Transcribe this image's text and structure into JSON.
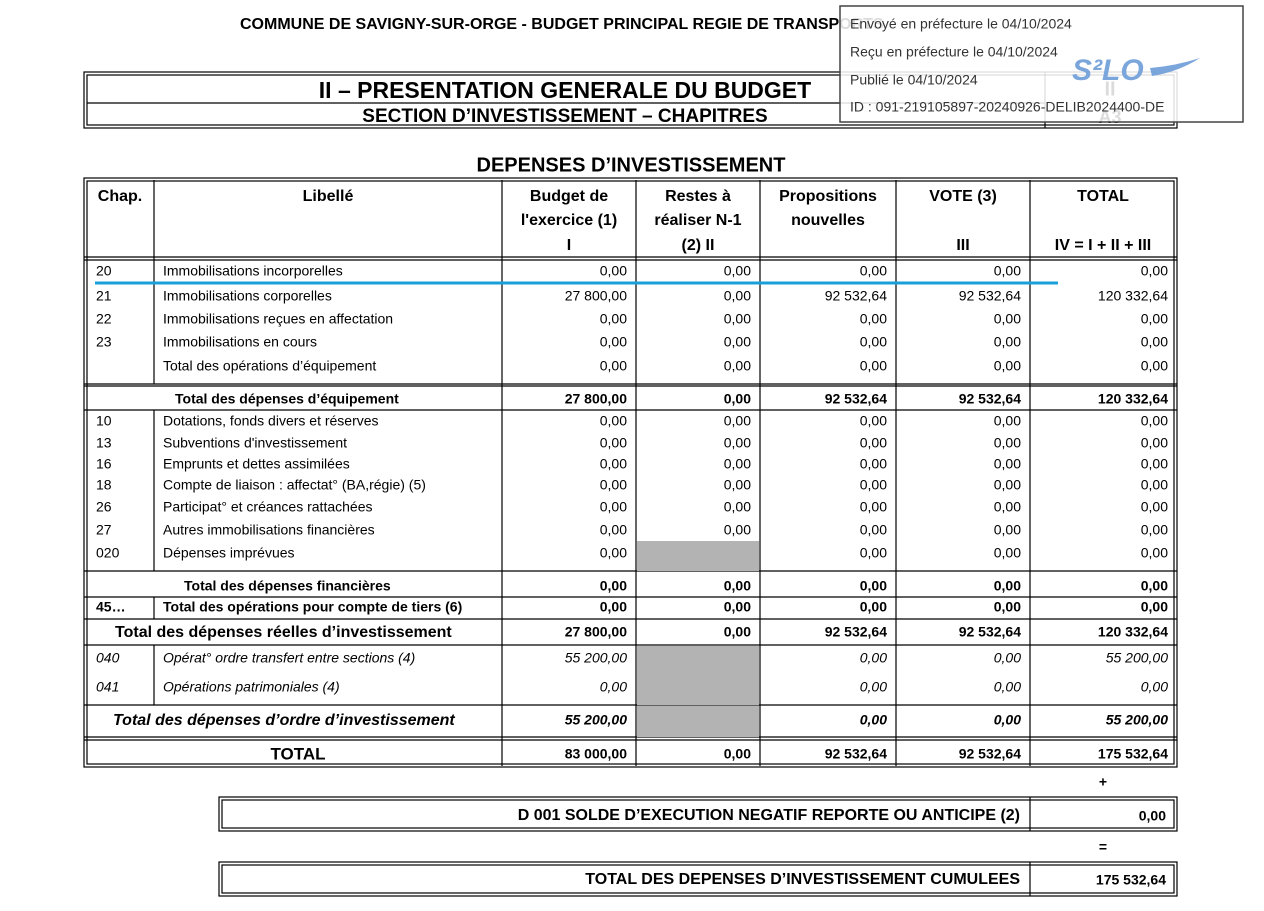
{
  "header": {
    "title": "COMMUNE DE SAVIGNY-SUR-ORGE - BUDGET PRINCIPAL REGIE DE TRANSPORTS"
  },
  "stamp": {
    "lines": [
      "Envoyé en préfecture le 04/10/2024",
      "Reçu en préfecture le 04/10/2024",
      "Publié le 04/10/2024",
      "ID : 091-219105897-20240926-DELIB2024400-DE"
    ],
    "logo": "S²LO"
  },
  "title_block": {
    "title": "II – PRESENTATION GENERALE DU BUDGET",
    "subtitle": "SECTION D’INVESTISSEMENT – CHAPITRES",
    "section": "II",
    "page": "A3"
  },
  "section_title": "DEPENSES D’INVESTISSEMENT",
  "table": {
    "headers": [
      [
        "Chap."
      ],
      [
        "Libellé"
      ],
      [
        "Budget de",
        "l'exercice (1)",
        "I"
      ],
      [
        "Restes à",
        "réaliser N-1",
        "(2) II"
      ],
      [
        "Propositions",
        "nouvelles"
      ],
      [
        "VOTE (3)",
        "III"
      ],
      [
        "TOTAL",
        "IV = I + II + III"
      ]
    ],
    "rows": [
      {
        "chap": "20",
        "label": "Immobilisations incorporelles",
        "values": [
          "0,00",
          "0,00",
          "0,00",
          "0,00",
          "0,00"
        ]
      },
      {
        "chap": "21",
        "label": "Immobilisations corporelles",
        "values": [
          "27 800,00",
          "0,00",
          "92 532,64",
          "92 532,64",
          "120 332,64"
        ]
      },
      {
        "chap": "22",
        "label": "Immobilisations reçues en affectation",
        "values": [
          "0,00",
          "0,00",
          "0,00",
          "0,00",
          "0,00"
        ]
      },
      {
        "chap": "23",
        "label": "Immobilisations en cours",
        "values": [
          "0,00",
          "0,00",
          "0,00",
          "0,00",
          "0,00"
        ]
      },
      {
        "label": "Total des opérations d’équipement",
        "values": [
          "0,00",
          "0,00",
          "0,00",
          "0,00",
          "0,00"
        ]
      },
      {
        "label": "Total des dépenses d’équipement",
        "values": [
          "27 800,00",
          "0,00",
          "92 532,64",
          "92 532,64",
          "120 332,64"
        ]
      },
      {
        "chap": "10",
        "label": "Dotations, fonds divers et réserves",
        "values": [
          "0,00",
          "0,00",
          "0,00",
          "0,00",
          "0,00"
        ]
      },
      {
        "chap": "13",
        "label": "Subventions d'investissement",
        "values": [
          "0,00",
          "0,00",
          "0,00",
          "0,00",
          "0,00"
        ]
      },
      {
        "chap": "16",
        "label": "Emprunts et dettes assimilées",
        "values": [
          "0,00",
          "0,00",
          "0,00",
          "0,00",
          "0,00"
        ]
      },
      {
        "chap": "18",
        "label": "Compte de liaison : affectat° (BA,régie) (5)",
        "values": [
          "0,00",
          "0,00",
          "0,00",
          "0,00",
          "0,00"
        ]
      },
      {
        "chap": "26",
        "label": "Participat° et créances rattachées",
        "values": [
          "0,00",
          "0,00",
          "0,00",
          "0,00",
          "0,00"
        ]
      },
      {
        "chap": "27",
        "label": "Autres immobilisations financières",
        "values": [
          "0,00",
          "0,00",
          "0,00",
          "0,00",
          "0,00"
        ]
      },
      {
        "chap": "020",
        "label": "Dépenses imprévues",
        "values": [
          "0,00",
          null,
          "0,00",
          "0,00",
          "0,00"
        ]
      },
      {
        "label": "Total des dépenses financières",
        "values": [
          "0,00",
          "0,00",
          "0,00",
          "0,00",
          "0,00"
        ]
      },
      {
        "chap": "45…",
        "label": "Total des opérations pour compte de tiers (6)",
        "values": [
          "0,00",
          "0,00",
          "0,00",
          "0,00",
          "0,00"
        ]
      },
      {
        "label": "Total des dépenses réelles d’investissement",
        "values": [
          "27 800,00",
          "0,00",
          "92 532,64",
          "92 532,64",
          "120 332,64"
        ]
      },
      {
        "chap": "040",
        "label": "Opérat° ordre transfert entre sections (4)",
        "values": [
          "55 200,00",
          null,
          "0,00",
          "0,00",
          "55 200,00"
        ]
      },
      {
        "chap": "041",
        "label": "Opérations patrimoniales (4)",
        "values": [
          "0,00",
          null,
          "0,00",
          "0,00",
          "0,00"
        ]
      },
      {
        "label": "Total des dépenses d’ordre d’investissement",
        "values": [
          "55 200,00",
          null,
          "0,00",
          "0,00",
          "55 200,00"
        ]
      },
      {
        "label": "TOTAL",
        "values": [
          "83 000,00",
          "0,00",
          "92 532,64",
          "92 532,64",
          "175 532,64"
        ]
      }
    ]
  },
  "summary": {
    "plus": "+",
    "d001": {
      "label": "D 001 SOLDE D’EXECUTION NEGATIF REPORTE OU ANTICIPE (2)",
      "value": "0,00"
    },
    "equals": "=",
    "cumulative": {
      "label": "TOTAL DES DEPENSES D’INVESTISSEMENT CUMULEES",
      "value": "175 532,64"
    }
  }
}
